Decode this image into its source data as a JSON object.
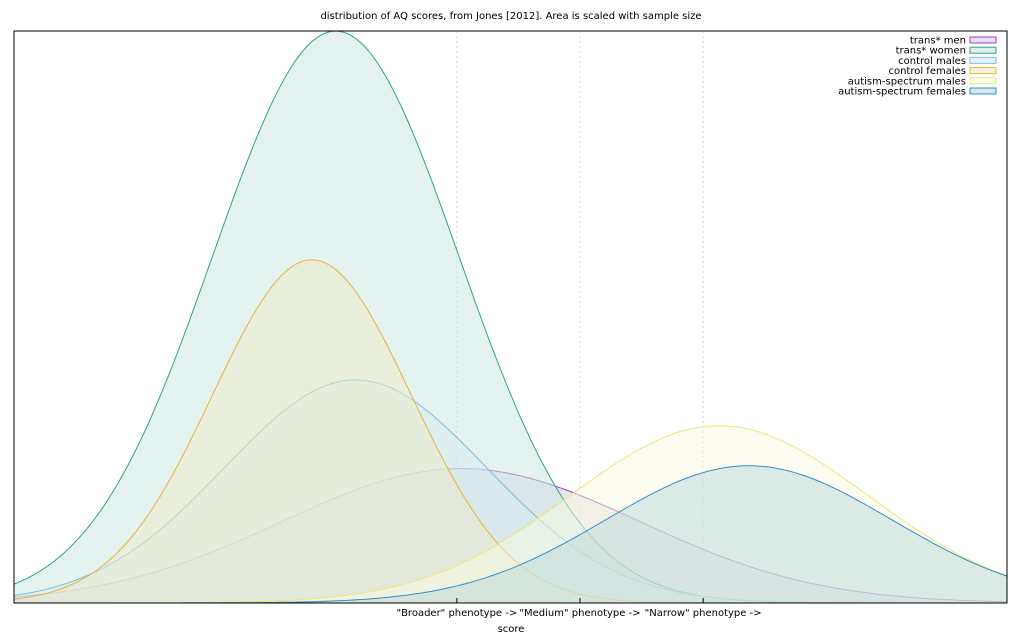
{
  "chart_data": {
    "type": "area",
    "title": "distribution of AQ scores, from Jones [2012]. Area is scaled with sample size",
    "xlabel": "score",
    "ylabel": "",
    "xlim": [
      0,
      50
    ],
    "ylim": [
      0,
      1
    ],
    "grid": "vertical lines at phenotype thresholds",
    "legend_position": "top-right",
    "x_ticks": [
      {
        "x": 22.3,
        "label": "\"Broader\" phenotype ->"
      },
      {
        "x": 28.5,
        "label": "\"Medium\" phenotype ->"
      },
      {
        "x": 34.7,
        "label": "\"Narrow\" phenotype ->"
      }
    ],
    "series": [
      {
        "name": "trans* men",
        "color": "#9b3fbf",
        "fill": "#d9c9e8",
        "peak_x": 22.5,
        "peak_y": 0.235,
        "sd": 9.0
      },
      {
        "name": "trans* women",
        "color": "#2aa686",
        "fill": "#c9e8e0",
        "peak_x": 16.2,
        "peak_y": 1.0,
        "sd": 6.2
      },
      {
        "name": "control males",
        "color": "#7ec0d8",
        "fill": "#d6e9f1",
        "peak_x": 17.2,
        "peak_y": 0.39,
        "sd": 6.6
      },
      {
        "name": "control females",
        "color": "#e8b33c",
        "fill": "#eeeac8",
        "peak_x": 15.0,
        "peak_y": 0.6,
        "sd": 5.0
      },
      {
        "name": "autism-spectrum males",
        "color": "#ece678",
        "fill": "#fafbe2",
        "peak_x": 35.5,
        "peak_y": 0.31,
        "sd": 7.5
      },
      {
        "name": "autism-spectrum females",
        "color": "#2f8fc8",
        "fill": "#bcd7da",
        "peak_x": 37.0,
        "peak_y": 0.24,
        "sd": 7.2
      }
    ]
  }
}
